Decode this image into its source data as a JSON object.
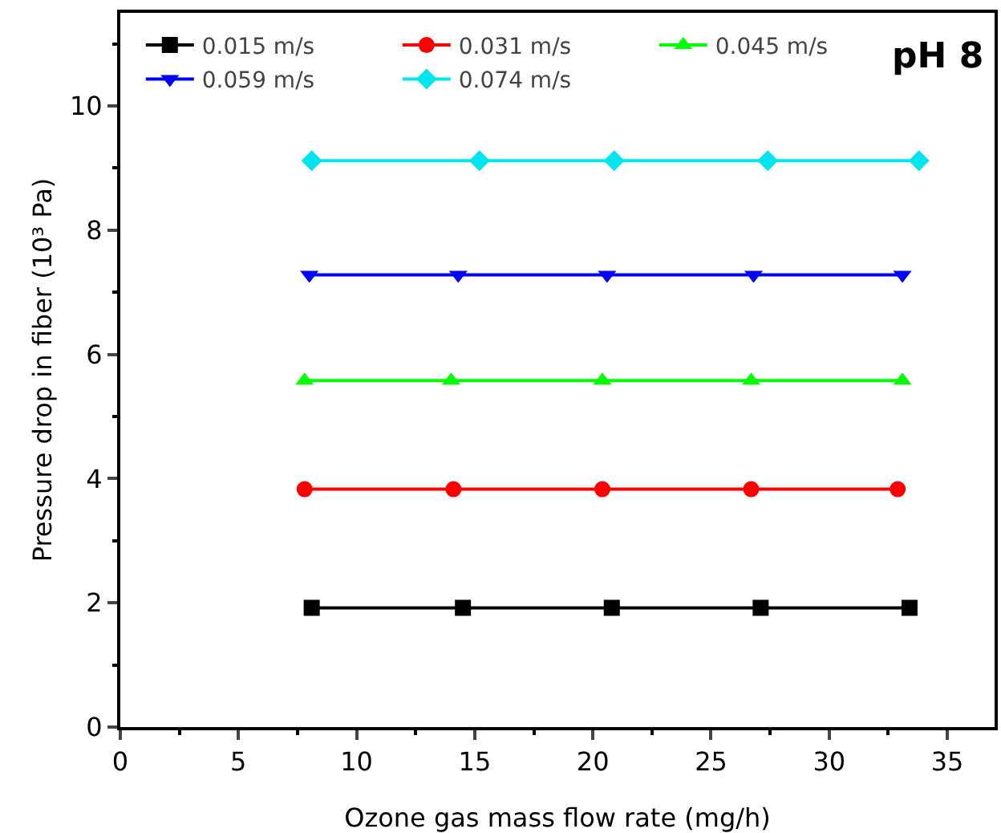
{
  "chart_data": {
    "type": "line",
    "xlabel": "Ozone gas mass flow rate (mg/h)",
    "ylabel": "Pressure drop in fiber (10³ Pa)",
    "annotations": [
      "pH 8"
    ],
    "xlim": [
      0,
      37
    ],
    "xticks": [
      0,
      5,
      10,
      15,
      20,
      25,
      30,
      35
    ],
    "ylim": [
      0,
      11.5
    ],
    "yticks": [
      0,
      2,
      4,
      6,
      8,
      10
    ],
    "grid": false,
    "legend": "top left",
    "line_style": "solid",
    "series": [
      {
        "name": "0.015 m/s",
        "color": "#000000",
        "marker": "square",
        "x": [
          8.1,
          14.5,
          20.8,
          27.1,
          33.4
        ],
        "values": [
          1.92,
          1.92,
          1.92,
          1.92,
          1.92
        ]
      },
      {
        "name": "0.031 m/s",
        "color": "#ff0000",
        "marker": "circle",
        "x": [
          7.8,
          14.1,
          20.4,
          26.7,
          32.9
        ],
        "values": [
          3.83,
          3.83,
          3.83,
          3.83,
          3.83
        ]
      },
      {
        "name": "0.045 m/s",
        "color": "#00ff00",
        "marker": "triangle",
        "x": [
          7.8,
          14.0,
          20.4,
          26.7,
          33.1
        ],
        "values": [
          5.58,
          5.58,
          5.58,
          5.58,
          5.58
        ]
      },
      {
        "name": "0.059 m/s",
        "color": "#0000ff",
        "marker": "triangle-down",
        "x": [
          8.0,
          14.3,
          20.6,
          26.8,
          33.1
        ],
        "values": [
          7.28,
          7.28,
          7.28,
          7.28,
          7.28
        ]
      },
      {
        "name": "0.074 m/s",
        "color": "#00e5ee",
        "marker": "diamond",
        "x": [
          8.1,
          15.2,
          20.9,
          27.4,
          33.8
        ],
        "values": [
          9.12,
          9.12,
          9.12,
          9.12,
          9.12
        ]
      }
    ]
  }
}
